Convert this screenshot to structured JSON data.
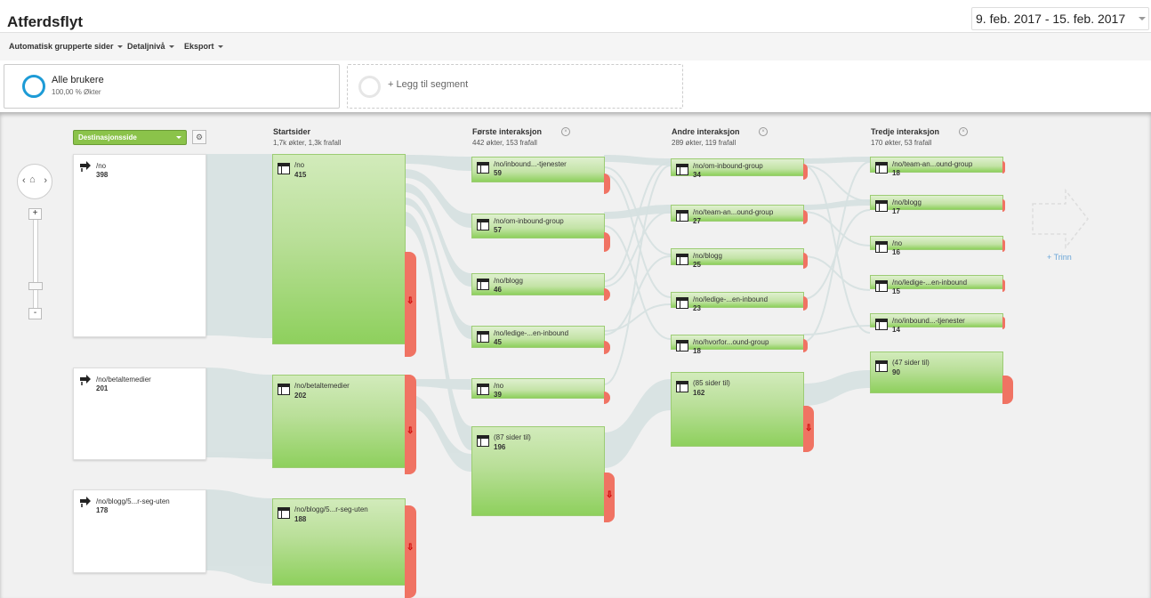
{
  "page": {
    "title": "Atferdsflyt",
    "date_range": "9. feb. 2017 - 15. feb. 2017"
  },
  "toolbar": {
    "grouping": "Automatisk grupperte sider",
    "detail": "Detaljnivå",
    "export": "Eksport"
  },
  "segments": {
    "all_users": "Alle brukere",
    "all_users_pct": "100,00 % Økter",
    "add_segment": "+ Legg til segment"
  },
  "zoom": {
    "left": "‹",
    "right": "›",
    "home": "⌂",
    "plus": "+",
    "minus": "-"
  },
  "dimension": {
    "label": "Destinasjonsside",
    "gear": "⚙"
  },
  "columns": {
    "start": {
      "title": "Startsider",
      "stats": "1,7k økter, 1,3k frafall"
    },
    "first": {
      "title": "Første interaksjon",
      "stats": "442 økter, 153 frafall"
    },
    "second": {
      "title": "Andre interaksjon",
      "stats": "289 økter, 119 frafall"
    },
    "third": {
      "title": "Tredje interaksjon",
      "stats": "170 økter, 53 frafall"
    }
  },
  "sources": [
    {
      "label": "/no",
      "value": "398"
    },
    {
      "label": "/no/betaltemedier",
      "value": "201"
    },
    {
      "label": "/no/blogg/5...r-seg-uten",
      "value": "178"
    }
  ],
  "start_nodes": [
    {
      "label": "/no",
      "value": "415"
    },
    {
      "label": "/no/betaltemedier",
      "value": "202"
    },
    {
      "label": "/no/blogg/5...r-seg-uten",
      "value": "188"
    }
  ],
  "first_nodes": [
    {
      "label": "/no/inbound...-tjenester",
      "value": "59"
    },
    {
      "label": "/no/om-inbound-group",
      "value": "57"
    },
    {
      "label": "/no/blogg",
      "value": "46"
    },
    {
      "label": "/no/ledige-...en-inbound",
      "value": "45"
    },
    {
      "label": "/no",
      "value": "39"
    },
    {
      "label": "(87 sider til)",
      "value": "196"
    }
  ],
  "second_nodes": [
    {
      "label": "/no/om-inbound-group",
      "value": "34"
    },
    {
      "label": "/no/team-an...ound-group",
      "value": "27"
    },
    {
      "label": "/no/blogg",
      "value": "25"
    },
    {
      "label": "/no/ledige-...en-inbound",
      "value": "23"
    },
    {
      "label": "/no/hvorfor...ound-group",
      "value": "18"
    },
    {
      "label": "(85 sider til)",
      "value": "162"
    }
  ],
  "third_nodes": [
    {
      "label": "/no/team-an...ound-group",
      "value": "18"
    },
    {
      "label": "/no/blogg",
      "value": "17"
    },
    {
      "label": "/no",
      "value": "16"
    },
    {
      "label": "/no/ledige-...en-inbound",
      "value": "15"
    },
    {
      "label": "/no/inbound...-tjenester",
      "value": "14"
    },
    {
      "label": "(47 sider til)",
      "value": "90"
    }
  ],
  "next_step": {
    "label": "+ Trinn"
  },
  "drop_arrow": "⇩",
  "colors": {
    "node_green": "#8ed05d",
    "dropoff_red": "#f07363",
    "link_gray": "#d6e1e1",
    "segment_blue": "#1d9bd6"
  }
}
